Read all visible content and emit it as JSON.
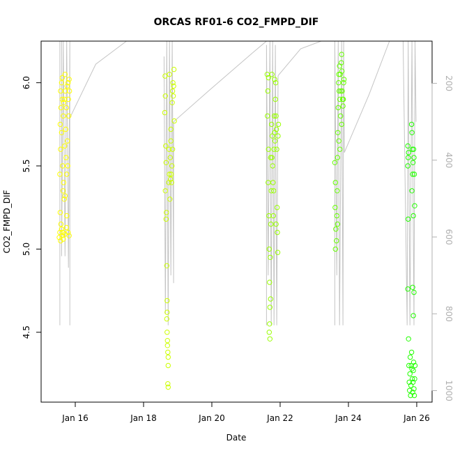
{
  "chart_data": {
    "type": "scatter",
    "title": "ORCAS RF01-6 CO2_FMPD_DIF",
    "xlabel": "Date",
    "ylabel": "CO2_FMPD_DIF",
    "x_ticks": [
      "Jan 16",
      "Jan 18",
      "Jan 20",
      "Jan 22",
      "Jan 24",
      "Jan 26"
    ],
    "x_tick_values": [
      16,
      18,
      20,
      22,
      24,
      26
    ],
    "xlim": [
      15.0,
      26.45
    ],
    "y_ticks": [
      "4.5",
      "5.0",
      "5.5",
      "6.0"
    ],
    "y_tick_values": [
      4.5,
      5.0,
      5.5,
      6.0
    ],
    "ylim": [
      4.08,
      6.25
    ],
    "y2_ticks": [
      "200",
      "400",
      "600",
      "800",
      "1000"
    ],
    "y2_tick_values": [
      200,
      400,
      600,
      800,
      1000
    ],
    "y2lim": [
      1030,
      90
    ],
    "y2_axis_color": "#b0b0b0",
    "pressure_line_color": "#c4c4c4",
    "grid": false,
    "legend": "none",
    "marker": "open-circle",
    "series": [
      {
        "color": "#ffff00",
        "x_range": [
          15.52,
          15.84
        ],
        "points": [
          [
            15.53,
            5.07
          ],
          [
            15.55,
            5.1
          ],
          [
            15.57,
            5.05
          ],
          [
            15.6,
            5.12
          ],
          [
            15.62,
            5.08
          ],
          [
            15.65,
            5.06
          ],
          [
            15.58,
            5.15
          ],
          [
            15.63,
            5.1
          ],
          [
            15.7,
            5.09
          ],
          [
            15.74,
            5.13
          ],
          [
            15.79,
            5.1
          ],
          [
            15.82,
            5.08
          ],
          [
            15.56,
            5.22
          ],
          [
            15.55,
            5.45
          ],
          [
            15.57,
            5.6
          ],
          [
            15.56,
            5.75
          ],
          [
            15.58,
            5.85
          ],
          [
            15.57,
            5.95
          ],
          [
            15.6,
            6.0
          ],
          [
            15.62,
            5.9
          ],
          [
            15.6,
            5.7
          ],
          [
            15.63,
            5.5
          ],
          [
            15.65,
            5.8
          ],
          [
            15.64,
            5.35
          ],
          [
            15.66,
            5.4
          ],
          [
            15.68,
            5.9
          ],
          [
            15.69,
            5.62
          ],
          [
            15.7,
            6.05
          ],
          [
            15.71,
            5.95
          ],
          [
            15.72,
            5.72
          ],
          [
            15.73,
            5.55
          ],
          [
            15.74,
            5.85
          ],
          [
            15.75,
            5.45
          ],
          [
            15.76,
            5.98
          ],
          [
            15.77,
            5.65
          ],
          [
            15.78,
            5.5
          ],
          [
            15.79,
            6.0
          ],
          [
            15.8,
            5.9
          ],
          [
            15.81,
            5.8
          ],
          [
            15.82,
            6.02
          ],
          [
            15.83,
            5.95
          ],
          [
            15.62,
            6.03
          ],
          [
            15.66,
            5.88
          ],
          [
            15.68,
            5.3
          ],
          [
            15.75,
            5.2
          ],
          [
            15.7,
            5.32
          ]
        ]
      },
      {
        "color": "#ccff00",
        "x_range": [
          18.6,
          18.92
        ],
        "points": [
          [
            18.63,
            6.04
          ],
          [
            18.64,
            5.92
          ],
          [
            18.62,
            5.82
          ],
          [
            18.65,
            5.62
          ],
          [
            18.66,
            5.52
          ],
          [
            18.64,
            5.35
          ],
          [
            18.67,
            5.22
          ],
          [
            18.66,
            5.18
          ],
          [
            18.68,
            4.9
          ],
          [
            18.69,
            4.69
          ],
          [
            18.68,
            4.58
          ],
          [
            18.69,
            4.5
          ],
          [
            18.7,
            4.45
          ],
          [
            18.7,
            4.42
          ],
          [
            18.71,
            4.38
          ],
          [
            18.72,
            4.35
          ],
          [
            18.72,
            4.3
          ],
          [
            18.71,
            4.19
          ],
          [
            18.72,
            4.17
          ],
          [
            18.69,
            4.62
          ],
          [
            18.74,
            5.4
          ],
          [
            18.75,
            5.6
          ],
          [
            18.76,
            5.45
          ],
          [
            18.77,
            5.3
          ],
          [
            18.78,
            5.55
          ],
          [
            18.79,
            5.42
          ],
          [
            18.8,
            5.72
          ],
          [
            18.81,
            5.45
          ],
          [
            18.82,
            5.4
          ],
          [
            18.83,
            5.5
          ],
          [
            18.84,
            5.88
          ],
          [
            18.85,
            5.95
          ],
          [
            18.86,
            6.0
          ],
          [
            18.87,
            5.92
          ],
          [
            18.88,
            5.98
          ],
          [
            18.89,
            6.08
          ],
          [
            18.9,
            5.77
          ],
          [
            18.76,
            6.05
          ],
          [
            18.8,
            5.65
          ],
          [
            18.85,
            5.6
          ]
        ]
      },
      {
        "color": "#99ff00",
        "x_range": [
          21.58,
          21.98
        ],
        "points": [
          [
            21.62,
            6.05
          ],
          [
            21.64,
            5.95
          ],
          [
            21.63,
            5.8
          ],
          [
            21.66,
            5.6
          ],
          [
            21.65,
            5.4
          ],
          [
            21.67,
            5.2
          ],
          [
            21.68,
            5.0
          ],
          [
            21.69,
            4.8
          ],
          [
            21.7,
            4.65
          ],
          [
            21.68,
            4.5
          ],
          [
            21.7,
            4.46
          ],
          [
            21.69,
            4.55
          ],
          [
            21.72,
            4.7
          ],
          [
            21.71,
            4.95
          ],
          [
            21.73,
            5.15
          ],
          [
            21.74,
            5.35
          ],
          [
            21.72,
            5.55
          ],
          [
            21.75,
            5.75
          ],
          [
            21.76,
            5.55
          ],
          [
            21.77,
            5.68
          ],
          [
            21.78,
            5.5
          ],
          [
            21.79,
            5.4
          ],
          [
            21.8,
            5.2
          ],
          [
            21.81,
            5.35
          ],
          [
            21.82,
            5.6
          ],
          [
            21.83,
            5.8
          ],
          [
            21.84,
            5.7
          ],
          [
            21.85,
            5.65
          ],
          [
            21.86,
            5.9
          ],
          [
            21.87,
            6.0
          ],
          [
            21.88,
            5.8
          ],
          [
            21.89,
            5.72
          ],
          [
            21.9,
            5.6
          ],
          [
            21.91,
            5.25
          ],
          [
            21.92,
            5.1
          ],
          [
            21.93,
            4.98
          ],
          [
            21.94,
            5.68
          ],
          [
            21.95,
            5.75
          ],
          [
            21.66,
            6.03
          ],
          [
            21.76,
            6.05
          ],
          [
            21.84,
            6.02
          ],
          [
            21.88,
            5.15
          ]
        ]
      },
      {
        "color": "#66ff00",
        "x_range": [
          23.58,
          23.9
        ],
        "points": [
          [
            23.6,
            5.52
          ],
          [
            23.62,
            5.4
          ],
          [
            23.61,
            5.25
          ],
          [
            23.63,
            5.12
          ],
          [
            23.62,
            5.0
          ],
          [
            23.65,
            5.05
          ],
          [
            23.66,
            5.2
          ],
          [
            23.67,
            5.35
          ],
          [
            23.68,
            5.55
          ],
          [
            23.69,
            5.7
          ],
          [
            23.7,
            5.85
          ],
          [
            23.71,
            6.0
          ],
          [
            23.72,
            6.05
          ],
          [
            23.73,
            5.95
          ],
          [
            23.74,
            6.1
          ],
          [
            23.75,
            5.9
          ],
          [
            23.76,
            6.05
          ],
          [
            23.77,
            5.8
          ],
          [
            23.78,
            5.95
          ],
          [
            23.79,
            6.12
          ],
          [
            23.8,
            6.17
          ],
          [
            23.81,
            6.07
          ],
          [
            23.82,
            5.95
          ],
          [
            23.83,
            5.9
          ],
          [
            23.84,
            5.86
          ],
          [
            23.85,
            5.9
          ],
          [
            23.86,
            6.0
          ],
          [
            23.87,
            6.02
          ],
          [
            23.72,
            5.65
          ],
          [
            23.75,
            5.6
          ],
          [
            23.8,
            5.75
          ],
          [
            23.68,
            5.15
          ]
        ]
      },
      {
        "color": "#22ff00",
        "x_range": [
          25.72,
          26.05
        ],
        "points": [
          [
            25.74,
            5.62
          ],
          [
            25.75,
            5.55
          ],
          [
            25.74,
            5.5
          ],
          [
            25.76,
            5.58
          ],
          [
            25.75,
            5.18
          ],
          [
            25.74,
            4.76
          ],
          [
            25.76,
            4.46
          ],
          [
            25.77,
            4.3
          ],
          [
            25.78,
            4.2
          ],
          [
            25.79,
            4.15
          ],
          [
            25.8,
            4.25
          ],
          [
            25.81,
            4.35
          ],
          [
            25.82,
            4.12
          ],
          [
            25.83,
            4.18
          ],
          [
            25.84,
            4.3
          ],
          [
            25.85,
            4.38
          ],
          [
            25.86,
            4.28
          ],
          [
            25.87,
            4.22
          ],
          [
            25.88,
            4.14
          ],
          [
            25.89,
            4.2
          ],
          [
            25.9,
            4.27
          ],
          [
            25.91,
            4.32
          ],
          [
            25.92,
            4.16
          ],
          [
            25.93,
            4.12
          ],
          [
            25.94,
            4.22
          ],
          [
            25.95,
            4.3
          ],
          [
            25.85,
            5.75
          ],
          [
            25.86,
            5.7
          ],
          [
            25.87,
            5.6
          ],
          [
            25.88,
            5.45
          ],
          [
            25.89,
            5.52
          ],
          [
            25.9,
            5.2
          ],
          [
            25.91,
            5.6
          ],
          [
            25.92,
            5.55
          ],
          [
            25.93,
            5.45
          ],
          [
            25.94,
            5.26
          ],
          [
            25.88,
            4.77
          ],
          [
            25.9,
            4.6
          ],
          [
            25.92,
            4.74
          ],
          [
            25.86,
            5.35
          ]
        ]
      }
    ],
    "pressure_profile": {
      "y_units": "secondary axis",
      "segments": [
        [
          [
            15.55,
            830
          ],
          [
            15.55,
            90
          ],
          [
            15.6,
            90
          ],
          [
            15.6,
            650
          ],
          [
            15.65,
            90
          ],
          [
            15.7,
            650
          ],
          [
            15.75,
            90
          ],
          [
            15.8,
            680
          ],
          [
            15.84,
            90
          ],
          [
            15.84,
            830
          ],
          [
            15.84,
            290
          ]
        ],
        [
          [
            15.84,
            290
          ],
          [
            16.6,
            150
          ],
          [
            17.5,
            60
          ]
        ],
        [
          [
            18.6,
            130
          ],
          [
            18.64,
            800
          ],
          [
            18.68,
            90
          ],
          [
            18.72,
            830
          ],
          [
            18.76,
            90
          ],
          [
            18.8,
            700
          ],
          [
            18.84,
            90
          ],
          [
            18.88,
            720
          ],
          [
            18.88,
            300
          ]
        ],
        [
          [
            18.88,
            300
          ],
          [
            19.9,
            220
          ],
          [
            21.2,
            120
          ],
          [
            21.6,
            60
          ]
        ],
        [
          [
            21.6,
            830
          ],
          [
            21.6,
            100
          ],
          [
            21.65,
            700
          ],
          [
            21.7,
            90
          ],
          [
            21.74,
            830
          ],
          [
            21.78,
            90
          ],
          [
            21.82,
            830
          ],
          [
            21.86,
            100
          ],
          [
            21.9,
            830
          ],
          [
            21.94,
            180
          ]
        ],
        [
          [
            21.94,
            180
          ],
          [
            22.6,
            110
          ],
          [
            23.2,
            60
          ]
        ],
        [
          [
            23.6,
            830
          ],
          [
            23.6,
            90
          ],
          [
            23.66,
            700
          ],
          [
            23.7,
            90
          ],
          [
            23.74,
            830
          ],
          [
            23.8,
            90
          ],
          [
            23.84,
            830
          ],
          [
            23.86,
            90
          ],
          [
            23.88,
            380
          ]
        ],
        [
          [
            23.88,
            380
          ],
          [
            24.6,
            230
          ],
          [
            25.2,
            90
          ]
        ],
        [
          [
            25.6,
            60
          ],
          [
            25.72,
            830
          ],
          [
            25.75,
            90
          ],
          [
            25.8,
            830
          ],
          [
            25.86,
            90
          ],
          [
            25.92,
            830
          ],
          [
            25.95,
            90
          ],
          [
            25.98,
            300
          ]
        ]
      ]
    }
  }
}
